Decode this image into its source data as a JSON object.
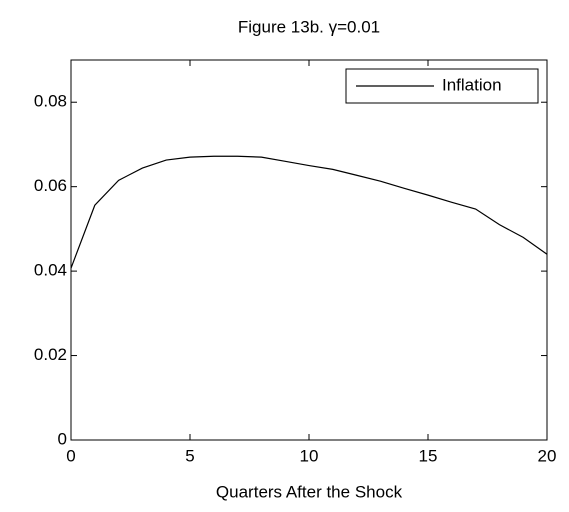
{
  "chart_data": {
    "type": "line",
    "title": "Figure 13b. γ=0.01",
    "xlabel": "Quarters After the Shock",
    "x": [
      0,
      1,
      2,
      3,
      4,
      5,
      6,
      7,
      8,
      9,
      10,
      11,
      12,
      13,
      14,
      15,
      16,
      17,
      18,
      19,
      20
    ],
    "series": [
      {
        "name": "Inflation",
        "color": "#000000",
        "values": [
          0.0407,
          0.0556,
          0.0615,
          0.0644,
          0.0663,
          0.067,
          0.0672,
          0.0672,
          0.067,
          0.066,
          0.065,
          0.0641,
          0.0627,
          0.0613,
          0.0596,
          0.058,
          0.0563,
          0.0547,
          0.051,
          0.048,
          0.044
        ]
      }
    ],
    "xlim": [
      0,
      20
    ],
    "xticks": [
      0,
      5,
      10,
      15,
      20
    ],
    "ylim": [
      0,
      0.09
    ],
    "yticks": [
      0,
      0.02,
      0.04,
      0.06,
      0.08
    ],
    "legend": "upper right"
  }
}
